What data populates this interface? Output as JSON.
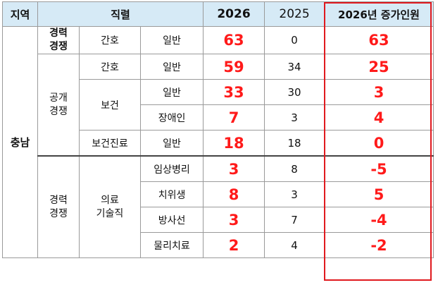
{
  "header": {
    "region": "지역",
    "position": "직렬",
    "y2026": "2026",
    "y2025": "2025",
    "increase": "2026년 증가인원"
  },
  "region": "충남",
  "groups": {
    "career1": "경력\n경쟁",
    "open": "공개\n경쟁",
    "career2": "경력\n경쟁"
  },
  "rows": [
    {
      "series": "간호",
      "sub": "일반",
      "v2026": "63",
      "v2025": "0",
      "inc": "63"
    },
    {
      "series": "간호",
      "sub": "일반",
      "v2026": "59",
      "v2025": "34",
      "inc": "25"
    },
    {
      "series": "보건",
      "sub": "일반",
      "v2026": "33",
      "v2025": "30",
      "inc": "3"
    },
    {
      "series": "",
      "sub": "장애인",
      "v2026": "7",
      "v2025": "3",
      "inc": "4"
    },
    {
      "series": "보건진료",
      "sub": "일반",
      "v2026": "18",
      "v2025": "18",
      "inc": "0"
    },
    {
      "series": "의료\n기술직",
      "sub": "임상병리",
      "v2026": "3",
      "v2025": "8",
      "inc": "-5"
    },
    {
      "series": "",
      "sub": "치위생",
      "v2026": "8",
      "v2025": "3",
      "inc": "5"
    },
    {
      "series": "",
      "sub": "방사선",
      "v2026": "3",
      "v2025": "7",
      "inc": "-4"
    },
    {
      "series": "",
      "sub": "물리치료",
      "v2026": "2",
      "v2025": "4",
      "inc": "-2"
    }
  ],
  "colors": {
    "header_bg": "#d6eaf6",
    "accent_red": "#ff1a1a",
    "box_red": "#e0191e"
  }
}
